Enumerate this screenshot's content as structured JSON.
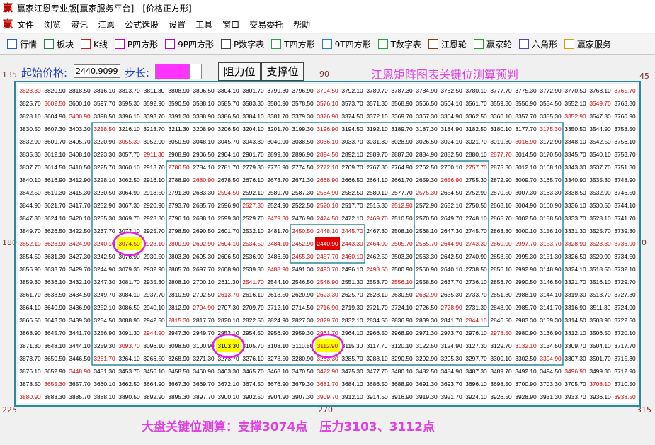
{
  "window": {
    "title": "赢家江恩专业版[赢家服务平台] - [价格正方形]",
    "menu": [
      "文件",
      "浏览",
      "资讯",
      "江恩",
      "公式选股",
      "设置",
      "工具",
      "窗口",
      "交易委托",
      "帮助"
    ],
    "toolbar": [
      "行情",
      "板块",
      "K线",
      "P四方形",
      "9P四方形",
      "P数字表",
      "T四方形",
      "9T四方形",
      "T数字表",
      "江恩轮",
      "赢家轮",
      "六角形",
      "赢家服务"
    ]
  },
  "controls": {
    "start_label": "起始价格:",
    "start_value": "2440.9099",
    "step_label": "步长:",
    "buttons": [
      "阻力位",
      "支撑位"
    ]
  },
  "matrix": {
    "title": "江恩矩阵图表关键位测算预判",
    "angles": {
      "top_left": "135",
      "top": "90",
      "top_right": "45",
      "left": "180",
      "right": "0",
      "bottom_left": "225",
      "bottom": "270",
      "bottom_right": "315"
    },
    "rows": [
      [
        "3823.30",
        "3820.90",
        "3818.50",
        "3816.10",
        "3813.70",
        "3811.30",
        "3808.90",
        "3806.50",
        "3804.10",
        "3801.70",
        "3799.30",
        "3796.90",
        "3794.50",
        "3792.10",
        "3789.70",
        "3787.30",
        "3784.90",
        "3782.50",
        "3780.10",
        "3777.70",
        "3775.30",
        "3772.90",
        "3770.50",
        "3768.10",
        "3765.70"
      ],
      [
        "3825.70",
        "3602.50",
        "3600.10",
        "3597.70",
        "3595.30",
        "3592.90",
        "3590.50",
        "3588.10",
        "3585.70",
        "3583.30",
        "3580.90",
        "3578.50",
        "3576.10",
        "3573.70",
        "3571.30",
        "3568.90",
        "3566.50",
        "3564.10",
        "3561.70",
        "3559.30",
        "3556.90",
        "3554.50",
        "3552.10",
        "3549.70",
        "3763.30"
      ],
      [
        "3828.10",
        "3604.90",
        "3400.90",
        "3398.50",
        "3396.10",
        "3393.70",
        "3391.30",
        "3388.90",
        "3386.50",
        "3384.10",
        "3381.70",
        "3379.30",
        "3376.90",
        "3374.50",
        "3372.10",
        "3369.70",
        "3367.30",
        "3364.90",
        "3362.50",
        "3360.10",
        "3357.70",
        "3355.30",
        "3352.90",
        "3547.30",
        "3760.90"
      ],
      [
        "3830.50",
        "3607.30",
        "3403.30",
        "3218.50",
        "3216.10",
        "3213.70",
        "3211.30",
        "3208.90",
        "3206.50",
        "3204.10",
        "3201.70",
        "3199.30",
        "3196.90",
        "3194.50",
        "3192.10",
        "3189.70",
        "3187.30",
        "3184.90",
        "3182.50",
        "3180.10",
        "3177.70",
        "3175.30",
        "3350.50",
        "3544.90",
        "3758.50"
      ],
      [
        "3832.90",
        "3609.70",
        "3405.70",
        "3220.90",
        "3055.30",
        "3052.90",
        "3050.50",
        "3048.10",
        "3045.70",
        "3043.30",
        "3040.90",
        "3038.50",
        "3036.10",
        "3033.70",
        "3031.30",
        "3028.90",
        "3026.50",
        "3024.10",
        "3021.70",
        "3019.30",
        "3016.90",
        "3172.90",
        "3348.10",
        "3542.50",
        "3756.10"
      ],
      [
        "3835.30",
        "3612.10",
        "3408.10",
        "3223.30",
        "3057.70",
        "2911.30",
        "2908.90",
        "2906.50",
        "2904.10",
        "2901.70",
        "2899.30",
        "2896.90",
        "2894.50",
        "2892.10",
        "2889.70",
        "2887.30",
        "2884.90",
        "2882.50",
        "2880.10",
        "2877.70",
        "3014.50",
        "3170.50",
        "3345.70",
        "3540.10",
        "3753.70"
      ],
      [
        "3837.70",
        "3614.50",
        "3410.50",
        "3225.70",
        "3060.10",
        "2913.70",
        "2786.50",
        "2784.10",
        "2781.70",
        "2779.30",
        "2776.90",
        "2774.50",
        "2772.10",
        "2769.70",
        "2767.30",
        "2764.90",
        "2762.50",
        "2760.10",
        "2757.70",
        "2875.30",
        "3012.10",
        "3168.10",
        "3343.30",
        "3537.70",
        "3751.30"
      ],
      [
        "3840.10",
        "3616.90",
        "3412.90",
        "3228.10",
        "3062.50",
        "2916.10",
        "2788.90",
        "2680.90",
        "2678.50",
        "2676.10",
        "2673.70",
        "2671.30",
        "2668.90",
        "2666.50",
        "2664.10",
        "2661.70",
        "2659.30",
        "2656.90",
        "2755.30",
        "2872.90",
        "3009.70",
        "3165.70",
        "3340.90",
        "3535.30",
        "3748.90"
      ],
      [
        "3842.50",
        "3619.30",
        "3415.30",
        "3230.50",
        "3064.90",
        "2918.50",
        "2791.30",
        "2683.30",
        "2594.50",
        "2592.10",
        "2589.70",
        "2587.30",
        "2584.90",
        "2582.50",
        "2580.10",
        "2577.70",
        "2575.30",
        "2654.50",
        "2752.90",
        "2870.50",
        "3007.30",
        "3163.30",
        "3338.50",
        "3532.90",
        "3746.50"
      ],
      [
        "3844.90",
        "3621.70",
        "3417.70",
        "3232.90",
        "3067.30",
        "2920.90",
        "2793.70",
        "2685.70",
        "2596.90",
        "2527.30",
        "2524.90",
        "2522.50",
        "2520.10",
        "2517.70",
        "2515.30",
        "2512.90",
        "2572.90",
        "2652.10",
        "2750.50",
        "2868.10",
        "3004.90",
        "3160.90",
        "3336.10",
        "3530.50",
        "3744.10"
      ],
      [
        "3847.30",
        "3624.10",
        "3420.10",
        "3235.30",
        "3069.70",
        "2923.30",
        "2796.10",
        "2688.10",
        "2599.30",
        "2529.70",
        "2479.30",
        "2476.90",
        "2474.50",
        "2472.10",
        "2469.70",
        "2510.50",
        "2570.50",
        "2649.70",
        "2748.10",
        "2865.70",
        "3002.50",
        "3158.50",
        "3333.70",
        "3528.10",
        "3741.70"
      ],
      [
        "3849.70",
        "3626.50",
        "3422.50",
        "3237.70",
        "3072.10",
        "2925.70",
        "2798.50",
        "2690.50",
        "2601.70",
        "2532.10",
        "2481.70",
        "2450.50",
        "2448.10",
        "2445.70",
        "2467.30",
        "2508.10",
        "2568.10",
        "2647.30",
        "2745.70",
        "2863.30",
        "3000.10",
        "3156.10",
        "3331.30",
        "3525.70",
        "3739.30"
      ],
      [
        "3852.10",
        "3628.90",
        "3424.90",
        "3240.10",
        "3074.50",
        "2928.10",
        "2800.90",
        "2692.90",
        "2604.10",
        "2534.50",
        "2484.10",
        "2452.90",
        "2440.90",
        "2443.30",
        "2464.90",
        "2505.70",
        "2565.70",
        "2644.90",
        "2743.30",
        "2860.90",
        "2997.70",
        "3153.70",
        "3328.90",
        "3523.30",
        "3736.90"
      ],
      [
        "3854.50",
        "3631.30",
        "3427.30",
        "3242.50",
        "3076.90",
        "2930.50",
        "2803.30",
        "2695.30",
        "2606.50",
        "2536.90",
        "2486.50",
        "2455.30",
        "2457.70",
        "2460.10",
        "2462.50",
        "2503.30",
        "2563.30",
        "2642.50",
        "2740.90",
        "2858.50",
        "2995.30",
        "3151.30",
        "3326.50",
        "3520.90",
        "3734.50"
      ],
      [
        "3856.90",
        "3633.70",
        "3429.70",
        "3244.90",
        "3079.30",
        "2932.90",
        "2805.70",
        "2697.70",
        "2608.90",
        "2539.30",
        "2488.90",
        "2491.30",
        "2493.70",
        "2496.10",
        "2498.50",
        "2500.90",
        "2560.90",
        "2640.10",
        "2738.50",
        "2856.10",
        "2992.90",
        "3148.90",
        "3324.10",
        "3518.50",
        "3732.10"
      ],
      [
        "3859.30",
        "3636.10",
        "3432.10",
        "3247.30",
        "3081.70",
        "2935.30",
        "2808.10",
        "2700.10",
        "2611.30",
        "2541.70",
        "2544.10",
        "2546.50",
        "2548.90",
        "2551.30",
        "2553.70",
        "2556.10",
        "2558.50",
        "2637.70",
        "2736.10",
        "2853.70",
        "2990.50",
        "3146.50",
        "3321.70",
        "3516.10",
        "3729.70"
      ],
      [
        "3861.70",
        "3638.50",
        "3434.50",
        "3249.70",
        "3084.10",
        "2937.70",
        "2810.50",
        "2702.50",
        "2613.70",
        "2616.10",
        "2618.50",
        "2620.90",
        "2623.30",
        "2625.70",
        "2628.10",
        "2630.50",
        "2632.90",
        "2635.30",
        "2733.70",
        "2851.30",
        "2988.10",
        "3144.10",
        "3319.30",
        "3513.70",
        "3727.30"
      ],
      [
        "3864.10",
        "3640.90",
        "3436.90",
        "3252.10",
        "3086.50",
        "2940.10",
        "2812.90",
        "2704.90",
        "2707.30",
        "2709.70",
        "2712.10",
        "2714.50",
        "2716.90",
        "2719.30",
        "2721.70",
        "2724.10",
        "2726.50",
        "2728.90",
        "2731.30",
        "2848.90",
        "2985.70",
        "3141.70",
        "3316.90",
        "3511.30",
        "3724.90"
      ],
      [
        "3866.50",
        "3643.30",
        "3439.30",
        "3254.50",
        "3088.90",
        "2942.50",
        "2815.30",
        "2817.70",
        "2820.10",
        "2822.50",
        "2824.90",
        "2827.30",
        "2829.70",
        "2832.10",
        "2834.50",
        "2836.90",
        "2839.30",
        "2841.70",
        "2844.10",
        "2846.50",
        "2983.30",
        "3139.30",
        "3314.50",
        "3508.90",
        "3722.50"
      ],
      [
        "3868.90",
        "3645.70",
        "3441.70",
        "3256.90",
        "3091.30",
        "2944.90",
        "2947.30",
        "2949.70",
        "2952.10",
        "2954.50",
        "2956.90",
        "2959.30",
        "2961.70",
        "2964.10",
        "2966.50",
        "2968.90",
        "2971.30",
        "2973.70",
        "2976.10",
        "2978.50",
        "2980.90",
        "3136.90",
        "3312.10",
        "3506.50",
        "3720.10"
      ],
      [
        "3871.30",
        "3648.10",
        "3444.10",
        "3259.30",
        "3093.70",
        "3096.10",
        "3098.50",
        "3100.90",
        "3103.30",
        "3105.70",
        "3108.10",
        "3110.50",
        "3112.90",
        "3115.30",
        "3117.70",
        "3120.10",
        "3122.50",
        "3124.90",
        "3127.30",
        "3129.70",
        "3132.10",
        "3134.50",
        "3309.70",
        "3504.10",
        "3717.70"
      ],
      [
        "3873.70",
        "3650.50",
        "3446.50",
        "3261.70",
        "3264.10",
        "3266.50",
        "3268.90",
        "3271.30",
        "3273.70",
        "3276.10",
        "3278.50",
        "3280.90",
        "3283.30",
        "3285.70",
        "3288.10",
        "3290.50",
        "3292.90",
        "3295.30",
        "3297.70",
        "3300.10",
        "3302.50",
        "3304.90",
        "3307.30",
        "3501.70",
        "3715.30"
      ],
      [
        "3876.10",
        "3652.90",
        "3448.90",
        "3451.30",
        "3453.70",
        "3456.10",
        "3458.50",
        "3460.90",
        "3463.30",
        "3465.70",
        "3468.10",
        "3470.50",
        "3472.90",
        "3475.30",
        "3477.70",
        "3480.10",
        "3482.50",
        "3484.90",
        "3487.30",
        "3489.70",
        "3492.10",
        "3494.50",
        "3496.90",
        "3499.30",
        "3712.90"
      ],
      [
        "3878.50",
        "3655.30",
        "3657.70",
        "3660.10",
        "3662.50",
        "3664.90",
        "3667.30",
        "3669.70",
        "3672.10",
        "3674.50",
        "3676.90",
        "3679.30",
        "3681.70",
        "3684.10",
        "3686.50",
        "3688.90",
        "3691.30",
        "3693.70",
        "3696.10",
        "3698.50",
        "3700.90",
        "3703.30",
        "3705.70",
        "3708.10",
        "3710.50"
      ],
      [
        "3880.90",
        "3883.30",
        "3885.70",
        "3888.10",
        "3890.50",
        "3892.90",
        "3895.30",
        "3897.70",
        "3900.10",
        "3902.50",
        "3904.90",
        "3907.30",
        "3909.70",
        "3912.10",
        "3914.50",
        "3916.90",
        "3919.30",
        "3921.70",
        "3924.10",
        "3926.50",
        "3928.90",
        "3931.30",
        "3933.70",
        "3936.10",
        "3938.50"
      ]
    ]
  },
  "note": "大盘关键位测算：支撑3074点　压力3103、3112点"
}
